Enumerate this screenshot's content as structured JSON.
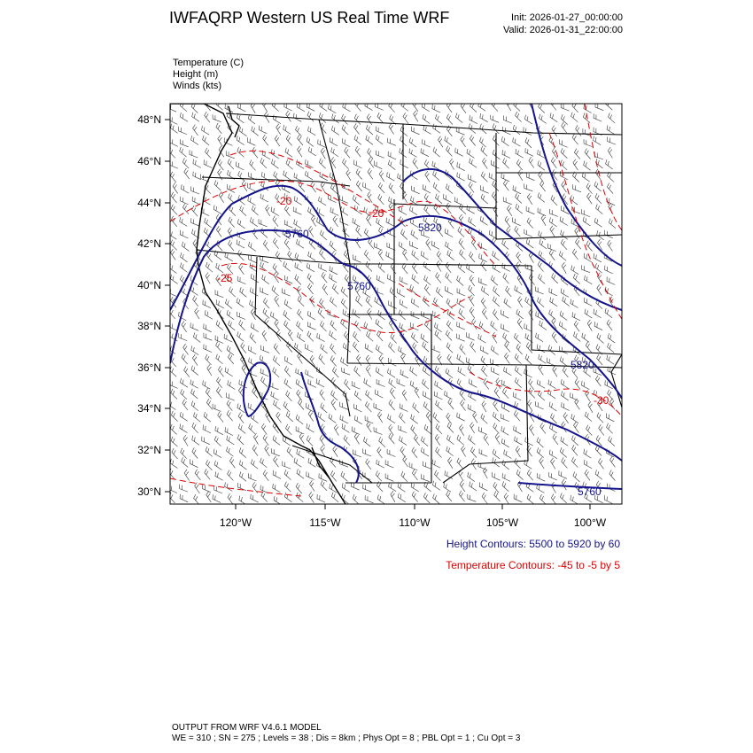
{
  "header": {
    "title": "IWFAQRP Western US Real Time WRF",
    "init": "Init: 2026-01-27_00:00:00",
    "valid": "Valid: 2026-01-31_22:00:00"
  },
  "fields": {
    "temperature": "Temperature   (C)",
    "height": "Height   (m)",
    "winds": "Winds   (kts)"
  },
  "map": {
    "lat_labels": [
      "48°N",
      "46°N",
      "44°N",
      "42°N",
      "40°N",
      "38°N",
      "36°N",
      "34°N",
      "32°N",
      "30°N"
    ],
    "lon_labels": [
      "120°W",
      "115°W",
      "110°W",
      "105°W",
      "100°W"
    ],
    "height_labels": [
      "5760",
      "5760",
      "5820",
      "5820",
      "5760"
    ],
    "temp_labels": [
      "-20",
      "-25",
      "-20",
      "-30"
    ]
  },
  "legend": {
    "height": "Height Contours: 5500 to 5920 by 60",
    "temperature": "Temperature Contours: -45 to -5 by 5",
    "height_color": "#14148c",
    "temp_color": "#e00000"
  },
  "footer": {
    "line1": "OUTPUT FROM WRF V4.6.1 MODEL",
    "line2": "WE = 310 ; SN = 275 ; Levels = 38 ; Dis = 8km ; Phys Opt = 8 ; PBL Opt = 1 ; Cu Opt = 3"
  }
}
